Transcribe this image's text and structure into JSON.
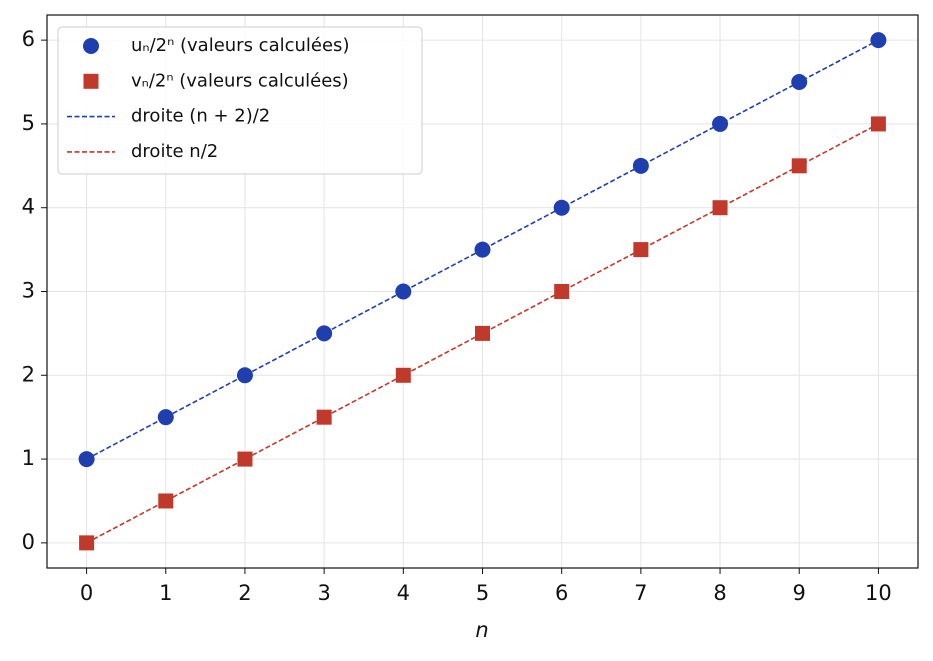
{
  "chart_data": {
    "type": "scatter",
    "x_label": "n",
    "x": [
      0,
      1,
      2,
      3,
      4,
      5,
      6,
      7,
      8,
      9,
      10
    ],
    "series": [
      {
        "name": "uₙ/2ⁿ (valeurs calculées)",
        "type": "scatter",
        "marker": "circle",
        "color": "#1f3fae",
        "values": [
          1,
          1.5,
          2,
          2.5,
          3,
          3.5,
          4,
          4.5,
          5,
          5.5,
          6
        ]
      },
      {
        "name": "vₙ/2ⁿ (valeurs calculées)",
        "type": "scatter",
        "marker": "square",
        "color": "#c0392b",
        "values": [
          0,
          0.5,
          1,
          1.5,
          2,
          2.5,
          3,
          3.5,
          4,
          4.5,
          5
        ]
      },
      {
        "name": "droite (n + 2)/2",
        "type": "line",
        "dashed": true,
        "color": "#1f3fae",
        "values": [
          1,
          1.5,
          2,
          2.5,
          3,
          3.5,
          4,
          4.5,
          5,
          5.5,
          6
        ]
      },
      {
        "name": "droite n/2",
        "type": "line",
        "dashed": true,
        "color": "#c0392b",
        "values": [
          0,
          0.5,
          1,
          1.5,
          2,
          2.5,
          3,
          3.5,
          4,
          4.5,
          5
        ]
      }
    ],
    "xlim": [
      -0.5,
      10.5
    ],
    "ylim": [
      -0.3,
      6.3
    ],
    "xticks": [
      0,
      1,
      2,
      3,
      4,
      5,
      6,
      7,
      8,
      9,
      10
    ],
    "yticks": [
      0,
      1,
      2,
      3,
      4,
      5,
      6
    ],
    "grid": true,
    "legend": "upper-left"
  }
}
